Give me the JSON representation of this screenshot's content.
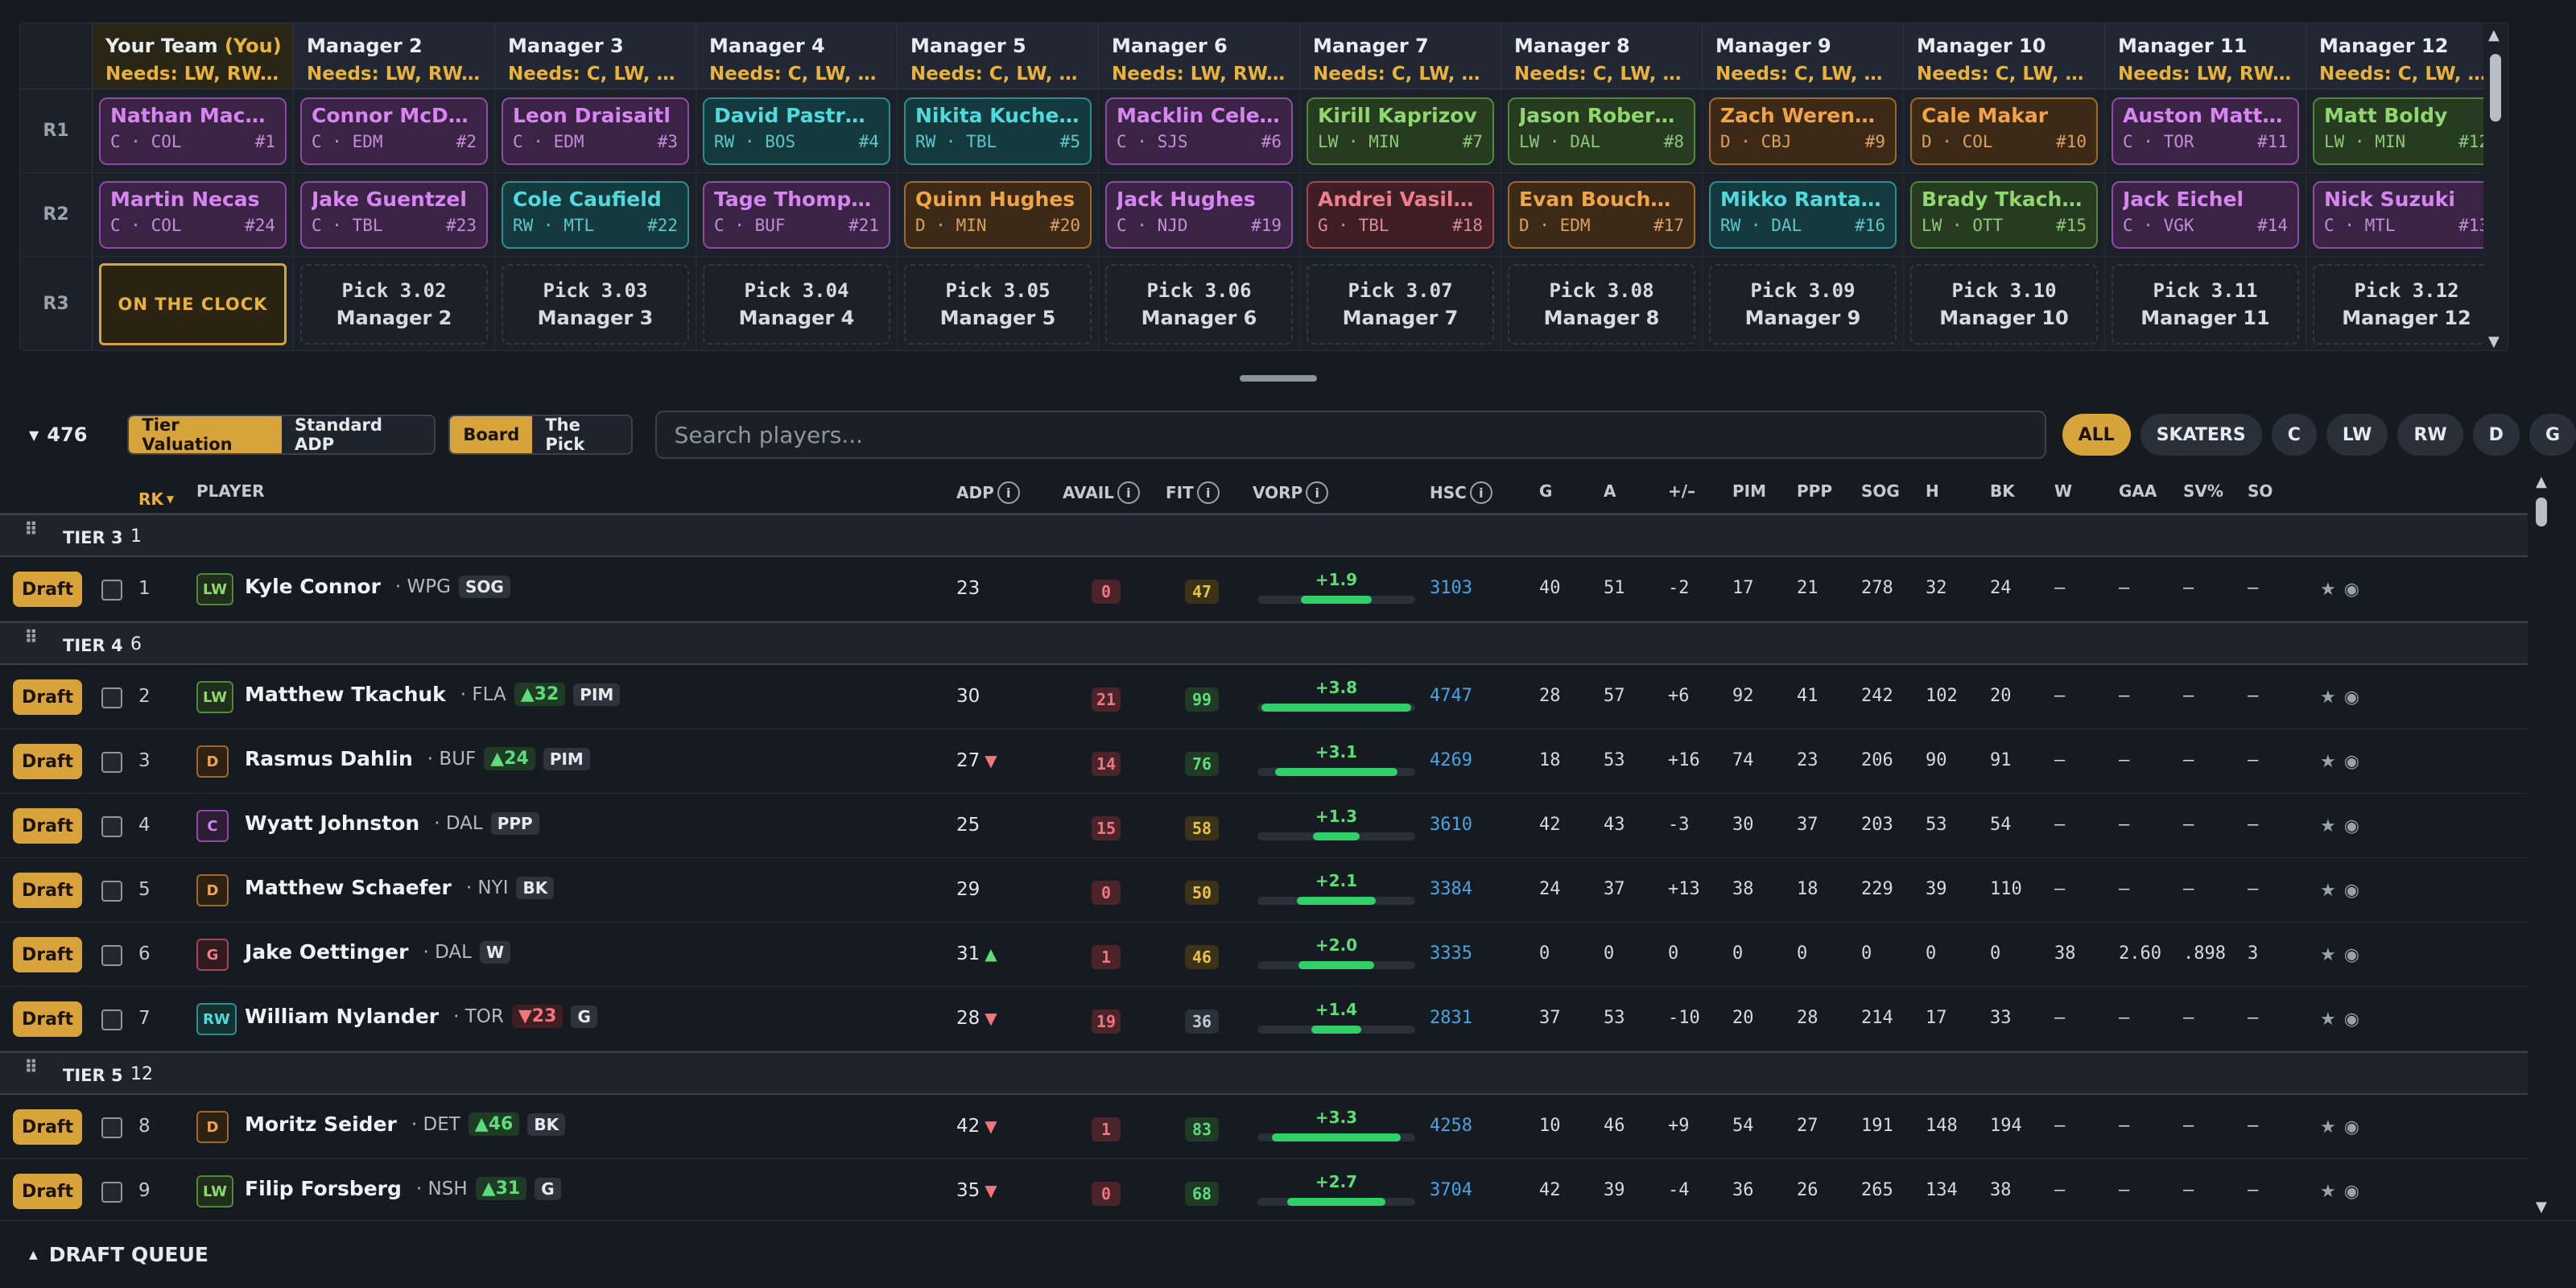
{
  "board": {
    "round_labels": [
      "R1",
      "R2",
      "R3"
    ],
    "managers": [
      {
        "name": "Your Team",
        "you": "(You)",
        "needs": "Needs: LW, RW, D"
      },
      {
        "name": "Manager 2",
        "needs": "Needs: LW, RW, D"
      },
      {
        "name": "Manager 3",
        "needs": "Needs: C, LW, RW"
      },
      {
        "name": "Manager 4",
        "needs": "Needs: C, LW, RW"
      },
      {
        "name": "Manager 5",
        "needs": "Needs: C, LW, RW"
      },
      {
        "name": "Manager 6",
        "needs": "Needs: LW, RW, D"
      },
      {
        "name": "Manager 7",
        "needs": "Needs: C, LW, RW"
      },
      {
        "name": "Manager 8",
        "needs": "Needs: C, LW, RW"
      },
      {
        "name": "Manager 9",
        "needs": "Needs: C, LW, RW"
      },
      {
        "name": "Manager 10",
        "needs": "Needs: C, LW, RW"
      },
      {
        "name": "Manager 11",
        "needs": "Needs: LW, RW, D"
      },
      {
        "name": "Manager 12",
        "needs": "Needs: C, LW, RW"
      }
    ],
    "r1": [
      {
        "name": "Nathan MacKinnon",
        "meta": "C · COL",
        "pick": "#1",
        "color": "purple"
      },
      {
        "name": "Connor McDavid",
        "meta": "C · EDM",
        "pick": "#2",
        "color": "purple"
      },
      {
        "name": "Leon Draisaitl",
        "meta": "C · EDM",
        "pick": "#3",
        "color": "purple"
      },
      {
        "name": "David Pastrnak",
        "meta": "RW · BOS",
        "pick": "#4",
        "color": "teal"
      },
      {
        "name": "Nikita Kucherov",
        "meta": "RW · TBL",
        "pick": "#5",
        "color": "teal"
      },
      {
        "name": "Macklin Celebrini",
        "meta": "C · SJS",
        "pick": "#6",
        "color": "purple"
      },
      {
        "name": "Kirill Kaprizov",
        "meta": "LW · MIN",
        "pick": "#7",
        "color": "green"
      },
      {
        "name": "Jason Robertson",
        "meta": "LW · DAL",
        "pick": "#8",
        "color": "green"
      },
      {
        "name": "Zach Werenski",
        "meta": "D · CBJ",
        "pick": "#9",
        "color": "orange"
      },
      {
        "name": "Cale Makar",
        "meta": "D · COL",
        "pick": "#10",
        "color": "orange"
      },
      {
        "name": "Auston Matthews",
        "meta": "C · TOR",
        "pick": "#11",
        "color": "purple"
      },
      {
        "name": "Matt Boldy",
        "meta": "LW · MIN",
        "pick": "#12",
        "color": "green"
      }
    ],
    "r2": [
      {
        "name": "Martin Necas",
        "meta": "C · COL",
        "pick": "#24",
        "color": "purple"
      },
      {
        "name": "Jake Guentzel",
        "meta": "C · TBL",
        "pick": "#23",
        "color": "purple"
      },
      {
        "name": "Cole Caufield",
        "meta": "RW · MTL",
        "pick": "#22",
        "color": "teal"
      },
      {
        "name": "Tage Thompson",
        "meta": "C · BUF",
        "pick": "#21",
        "color": "purple"
      },
      {
        "name": "Quinn Hughes",
        "meta": "D · MIN",
        "pick": "#20",
        "color": "orange"
      },
      {
        "name": "Jack Hughes",
        "meta": "C · NJD",
        "pick": "#19",
        "color": "purple"
      },
      {
        "name": "Andrei Vasilevskiy",
        "meta": "G · TBL",
        "pick": "#18",
        "color": "red"
      },
      {
        "name": "Evan Bouchard",
        "meta": "D · EDM",
        "pick": "#17",
        "color": "orange"
      },
      {
        "name": "Mikko Rantanen",
        "meta": "RW · DAL",
        "pick": "#16",
        "color": "teal"
      },
      {
        "name": "Brady Tkachuk",
        "meta": "LW · OTT",
        "pick": "#15",
        "color": "green"
      },
      {
        "name": "Jack Eichel",
        "meta": "C · VGK",
        "pick": "#14",
        "color": "purple"
      },
      {
        "name": "Nick Suzuki",
        "meta": "C · MTL",
        "pick": "#13",
        "color": "purple"
      }
    ],
    "on_the_clock": "ON THE CLOCK",
    "r3": [
      {
        "pick": "Pick 3.02",
        "mgr": "Manager 2"
      },
      {
        "pick": "Pick 3.03",
        "mgr": "Manager 3"
      },
      {
        "pick": "Pick 3.04",
        "mgr": "Manager 4"
      },
      {
        "pick": "Pick 3.05",
        "mgr": "Manager 5"
      },
      {
        "pick": "Pick 3.06",
        "mgr": "Manager 6"
      },
      {
        "pick": "Pick 3.07",
        "mgr": "Manager 7"
      },
      {
        "pick": "Pick 3.08",
        "mgr": "Manager 8"
      },
      {
        "pick": "Pick 3.09",
        "mgr": "Manager 9"
      },
      {
        "pick": "Pick 3.10",
        "mgr": "Manager 10"
      },
      {
        "pick": "Pick 3.11",
        "mgr": "Manager 11"
      },
      {
        "pick": "Pick 3.12",
        "mgr": "Manager 12"
      }
    ]
  },
  "toolbar": {
    "count": "476",
    "valuation": [
      "Tier Valuation",
      "Standard ADP"
    ],
    "view": [
      "Board",
      "The Pick"
    ],
    "search_placeholder": "Search players...",
    "filters": [
      "ALL",
      "SKATERS",
      "C",
      "LW",
      "RW",
      "D",
      "G"
    ]
  },
  "table": {
    "headers": {
      "rk": "RK",
      "player": "PLAYER",
      "adp": "ADP",
      "avail": "AVAIL",
      "fit": "FIT",
      "vorp": "VORP",
      "hsc": "HSC",
      "g": "G",
      "a": "A",
      "pm": "+/–",
      "pim": "PIM",
      "ppp": "PPP",
      "sog": "SOG",
      "h": "H",
      "bk": "BK",
      "w": "W",
      "gaa": "GAA",
      "sv": "SV%",
      "so": "SO"
    },
    "draft_label": "Draft",
    "tiers": [
      {
        "label": "TIER 3",
        "count": "1",
        "rows": [
          {
            "rk": "1",
            "pos": "LW",
            "name": "Kyle Connor",
            "team": "· WPG",
            "move": null,
            "tag": "SOG",
            "adp": "23",
            "adp_dir": null,
            "avail": "0",
            "fit": "47",
            "fit_lvl": "mid",
            "vorp": "+1.9",
            "vorp_pct": 0.45,
            "hsc": "3103",
            "g": "40",
            "a": "51",
            "pm": "-2",
            "pim": "17",
            "ppp": "21",
            "sog": "278",
            "h": "32",
            "bk": "24",
            "w": "–",
            "gaa": "–",
            "sv": "–",
            "so": "–"
          }
        ]
      },
      {
        "label": "TIER 4",
        "count": "6",
        "rows": [
          {
            "rk": "2",
            "pos": "LW",
            "name": "Matthew Tkachuk",
            "team": "· FLA",
            "move": {
              "dir": "up",
              "text": "▲32"
            },
            "tag": "PIM",
            "adp": "30",
            "adp_dir": null,
            "avail": "21",
            "fit": "99",
            "fit_lvl": "hi",
            "vorp": "+3.8",
            "vorp_pct": 0.95,
            "hsc": "4747",
            "g": "28",
            "a": "57",
            "pm": "+6",
            "pim": "92",
            "ppp": "41",
            "sog": "242",
            "h": "102",
            "bk": "20",
            "w": "–",
            "gaa": "–",
            "sv": "–",
            "so": "–"
          },
          {
            "rk": "3",
            "pos": "D",
            "name": "Rasmus Dahlin",
            "team": "· BUF",
            "move": {
              "dir": "up",
              "text": "▲24"
            },
            "tag": "PIM",
            "adp": "27",
            "adp_dir": "dn",
            "avail": "14",
            "fit": "76",
            "fit_lvl": "hi",
            "vorp": "+3.1",
            "vorp_pct": 0.78,
            "hsc": "4269",
            "g": "18",
            "a": "53",
            "pm": "+16",
            "pim": "74",
            "ppp": "23",
            "sog": "206",
            "h": "90",
            "bk": "91",
            "w": "–",
            "gaa": "–",
            "sv": "–",
            "so": "–"
          },
          {
            "rk": "4",
            "pos": "C",
            "name": "Wyatt Johnston",
            "team": "· DAL",
            "move": null,
            "tag": "PPP",
            "adp": "25",
            "adp_dir": null,
            "avail": "15",
            "fit": "58",
            "fit_lvl": "mid",
            "vorp": "+1.3",
            "vorp_pct": 0.3,
            "hsc": "3610",
            "g": "42",
            "a": "43",
            "pm": "-3",
            "pim": "30",
            "ppp": "37",
            "sog": "203",
            "h": "53",
            "bk": "54",
            "w": "–",
            "gaa": "–",
            "sv": "–",
            "so": "–"
          },
          {
            "rk": "5",
            "pos": "D",
            "name": "Matthew Schaefer",
            "team": "· NYI",
            "move": null,
            "tag": "BK",
            "adp": "29",
            "adp_dir": null,
            "avail": "0",
            "fit": "50",
            "fit_lvl": "mid",
            "vorp": "+2.1",
            "vorp_pct": 0.5,
            "hsc": "3384",
            "g": "24",
            "a": "37",
            "pm": "+13",
            "pim": "38",
            "ppp": "18",
            "sog": "229",
            "h": "39",
            "bk": "110",
            "w": "–",
            "gaa": "–",
            "sv": "–",
            "so": "–"
          },
          {
            "rk": "6",
            "pos": "G",
            "name": "Jake Oettinger",
            "team": "· DAL",
            "move": null,
            "tag": "W",
            "adp": "31",
            "adp_dir": "up",
            "avail": "1",
            "fit": "46",
            "fit_lvl": "mid",
            "vorp": "+2.0",
            "vorp_pct": 0.48,
            "hsc": "3335",
            "g": "0",
            "a": "0",
            "pm": "0",
            "pim": "0",
            "ppp": "0",
            "sog": "0",
            "h": "0",
            "bk": "0",
            "w": "38",
            "gaa": "2.60",
            "sv": ".898",
            "so": "3"
          },
          {
            "rk": "7",
            "pos": "RW",
            "name": "William Nylander",
            "team": "· TOR",
            "move": {
              "dir": "dn",
              "text": "▼23"
            },
            "tag": "G",
            "adp": "28",
            "adp_dir": "dn",
            "avail": "19",
            "fit": "36",
            "fit_lvl": "lo",
            "vorp": "+1.4",
            "vorp_pct": 0.32,
            "hsc": "2831",
            "g": "37",
            "a": "53",
            "pm": "-10",
            "pim": "20",
            "ppp": "28",
            "sog": "214",
            "h": "17",
            "bk": "33",
            "w": "–",
            "gaa": "–",
            "sv": "–",
            "so": "–"
          }
        ]
      },
      {
        "label": "TIER 5",
        "count": "12",
        "rows": [
          {
            "rk": "8",
            "pos": "D",
            "name": "Moritz Seider",
            "team": "· DET",
            "move": {
              "dir": "up",
              "text": "▲46"
            },
            "tag": "BK",
            "adp": "42",
            "adp_dir": "dn",
            "avail": "1",
            "fit": "83",
            "fit_lvl": "hi",
            "vorp": "+3.3",
            "vorp_pct": 0.82,
            "hsc": "4258",
            "g": "10",
            "a": "46",
            "pm": "+9",
            "pim": "54",
            "ppp": "27",
            "sog": "191",
            "h": "148",
            "bk": "194",
            "w": "–",
            "gaa": "–",
            "sv": "–",
            "so": "–"
          },
          {
            "rk": "9",
            "pos": "LW",
            "name": "Filip Forsberg",
            "team": "· NSH",
            "move": {
              "dir": "up",
              "text": "▲31"
            },
            "tag": "G",
            "adp": "35",
            "adp_dir": "dn",
            "avail": "0",
            "fit": "68",
            "fit_lvl": "hi",
            "vorp": "+2.7",
            "vorp_pct": 0.62,
            "hsc": "3704",
            "g": "42",
            "a": "39",
            "pm": "-4",
            "pim": "36",
            "ppp": "26",
            "sog": "265",
            "h": "134",
            "bk": "38",
            "w": "–",
            "gaa": "–",
            "sv": "–",
            "so": "–"
          }
        ]
      }
    ]
  },
  "queue": {
    "label": "DRAFT QUEUE"
  }
}
